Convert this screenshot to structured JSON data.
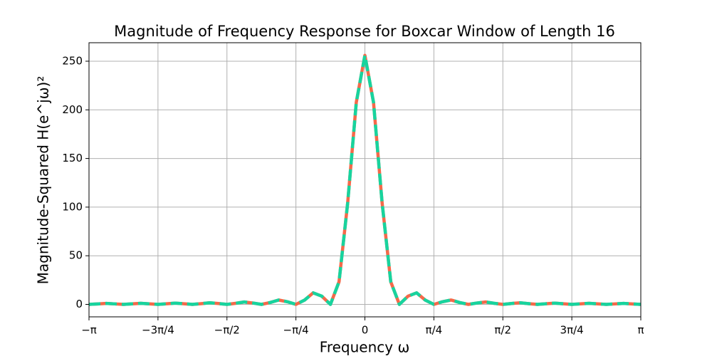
{
  "chart_data": {
    "type": "line",
    "title": "Magnitude of Frequency Response for Boxcar Window of Length 16",
    "xlabel": "Frequency ω",
    "ylabel": "Magnitude-Squared H(e^jω)²",
    "x": [
      -3.1416,
      -3.0434,
      -2.9452,
      -2.8471,
      -2.7489,
      -2.6507,
      -2.5525,
      -2.4544,
      -2.3562,
      -2.258,
      -2.1598,
      -2.0617,
      -1.9635,
      -1.8653,
      -1.7671,
      -1.669,
      -1.5708,
      -1.4726,
      -1.3744,
      -1.2763,
      -1.1781,
      -1.0799,
      -0.9817,
      -0.8836,
      -0.7854,
      -0.6872,
      -0.589,
      -0.4909,
      -0.3927,
      -0.2945,
      -0.1963,
      -0.0982,
      0,
      0.0982,
      0.1963,
      0.2945,
      0.3927,
      0.4909,
      0.589,
      0.6872,
      0.7854,
      0.8836,
      0.9817,
      1.0799,
      1.1781,
      1.2763,
      1.3744,
      1.4726,
      1.5708,
      1.669,
      1.7671,
      1.8653,
      1.9635,
      2.0617,
      2.1598,
      2.258,
      2.3562,
      2.4544,
      2.5525,
      2.6507,
      2.7489,
      2.8471,
      2.9452,
      3.0434,
      3.1416
    ],
    "series": [
      {
        "color": "#f4694a",
        "values": [
          0,
          0.501,
          1.01,
          0.511,
          0,
          0.531,
          1.092,
          0.564,
          0,
          0.612,
          1.286,
          0.68,
          0,
          0.775,
          1.674,
          0.911,
          0,
          1.109,
          2.485,
          1.409,
          0,
          1.892,
          4.5,
          2.735,
          0,
          4.41,
          11.87,
          8.47,
          0,
          23.22,
          104.1,
          207.6,
          256,
          207.6,
          104.1,
          23.22,
          0,
          8.47,
          11.87,
          4.41,
          0,
          2.735,
          4.5,
          1.892,
          0,
          1.409,
          2.485,
          1.109,
          0,
          0.911,
          1.674,
          0.775,
          0,
          0.68,
          1.286,
          0.612,
          0,
          0.564,
          1.092,
          0.531,
          0,
          0.511,
          1.01,
          0.501,
          0
        ]
      },
      {
        "color": "#17d49e",
        "dashed": true,
        "values": [
          0,
          0.501,
          1.01,
          0.511,
          0,
          0.531,
          1.092,
          0.564,
          0,
          0.612,
          1.286,
          0.68,
          0,
          0.775,
          1.674,
          0.911,
          0,
          1.109,
          2.485,
          1.409,
          0,
          1.892,
          4.5,
          2.735,
          0,
          4.41,
          11.87,
          8.47,
          0,
          23.22,
          104.1,
          207.6,
          256,
          207.6,
          104.1,
          23.22,
          0,
          8.47,
          11.87,
          4.41,
          0,
          2.735,
          4.5,
          1.892,
          0,
          1.409,
          2.485,
          1.109,
          0,
          0.911,
          1.674,
          0.775,
          0,
          0.68,
          1.286,
          0.612,
          0,
          0.564,
          1.092,
          0.531,
          0,
          0.511,
          1.01,
          0.501,
          0
        ]
      }
    ],
    "xlim": [
      -3.1416,
      3.1416
    ],
    "ylim": [
      -12.8,
      269
    ],
    "xticks": [
      {
        "value": -3.1416,
        "label": "−π"
      },
      {
        "value": -2.3562,
        "label": "−3π/4"
      },
      {
        "value": -1.5708,
        "label": "−π/2"
      },
      {
        "value": -0.7854,
        "label": "−π/4"
      },
      0,
      {
        "value": 0.7854,
        "label": "π/4"
      },
      {
        "value": 1.5708,
        "label": "π/2"
      },
      {
        "value": 2.3562,
        "label": "3π/4"
      },
      {
        "value": 3.1416,
        "label": "π"
      }
    ],
    "yticks": [
      0,
      50,
      100,
      150,
      200,
      250
    ],
    "grid": true
  }
}
